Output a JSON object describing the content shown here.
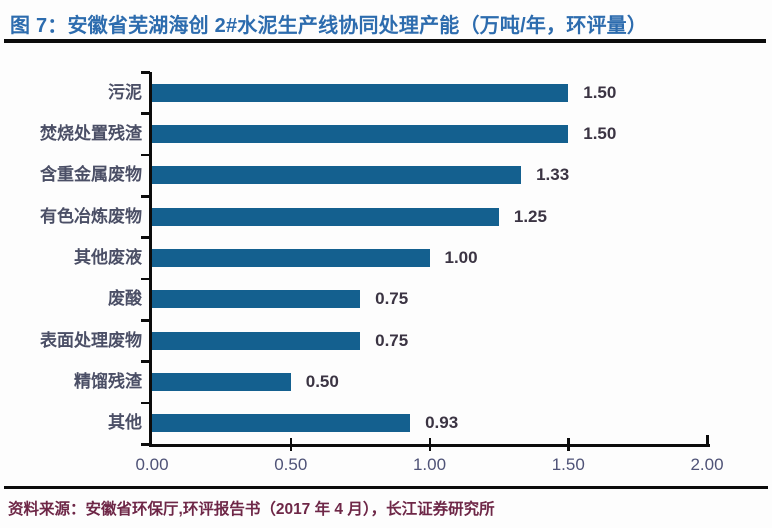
{
  "report": {
    "title": "图 7：安徽省芜湖海创 2#水泥生产线协同处理产能（万吨/年，环评量）",
    "source_label": "资料来源：",
    "source_text": "安徽省环保厅,环评报告书（2017 年 4 月），长江证券研究所"
  },
  "colors": {
    "title": "#2d6cae",
    "bar": "#14608f",
    "value_label": "#3b3443",
    "category_label": "#4b4f66",
    "axis_label": "#4f5377",
    "footer": "#6e2747",
    "rule": "#0c0c0c"
  },
  "chart_data": {
    "type": "bar",
    "orientation": "horizontal",
    "title": "安徽省芜湖海创2#水泥生产线协同处理产能",
    "unit": "万吨/年，环评量",
    "categories": [
      "污泥",
      "焚烧处置残渣",
      "含重金属废物",
      "有色冶炼废物",
      "其他废液",
      "废酸",
      "表面处理废物",
      "精馏残渣",
      "其他"
    ],
    "values": [
      1.5,
      1.5,
      1.33,
      1.25,
      1.0,
      0.75,
      0.75,
      0.5,
      0.93
    ],
    "value_labels": [
      "1.50",
      "1.50",
      "1.33",
      "1.25",
      "1.00",
      "0.75",
      "0.75",
      "0.50",
      "0.93"
    ],
    "x_ticks": [
      "0.00",
      "0.50",
      "1.00",
      "1.50",
      "2.00"
    ],
    "xlim": [
      0,
      2.0
    ],
    "grid": false,
    "legend": false,
    "data_labels": true
  }
}
